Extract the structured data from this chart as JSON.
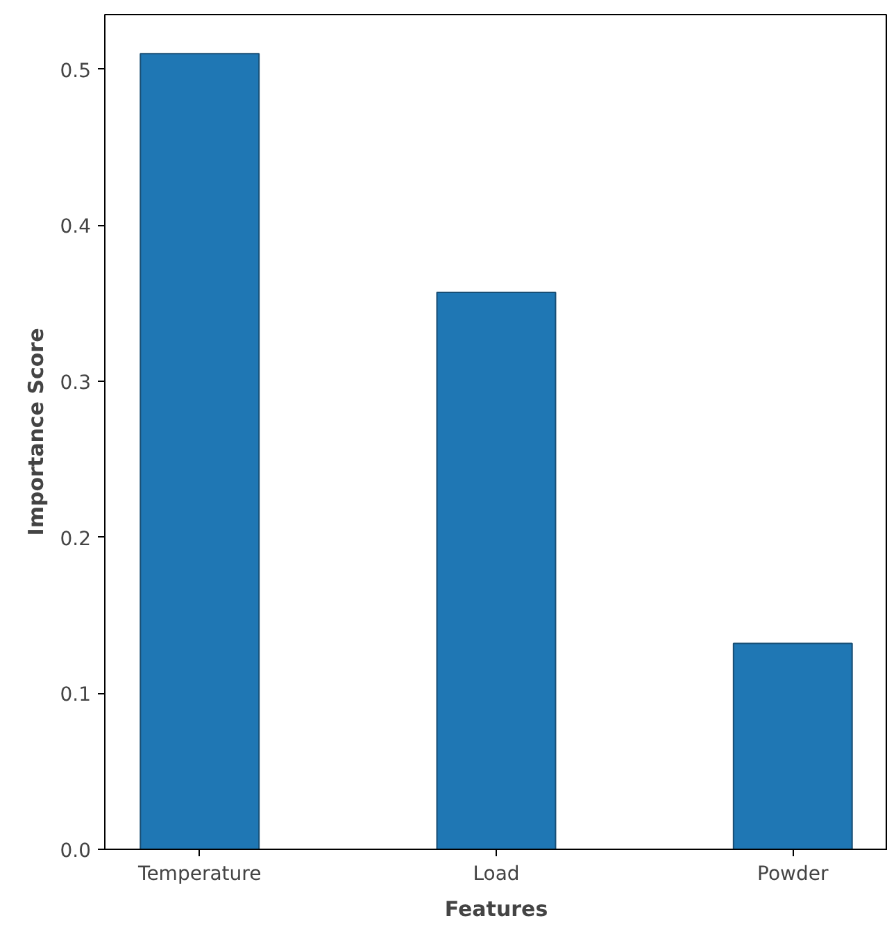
{
  "chart_data": {
    "type": "bar",
    "xlabel": "Features",
    "ylabel": "Importance Score",
    "categories": [
      "Temperature",
      "Load",
      "Powder"
    ],
    "values": [
      0.51,
      0.357,
      0.132
    ],
    "color": "#1f77b4",
    "ylim": [
      0,
      0.535
    ],
    "yticks": [
      {
        "value": 0,
        "label": "0.0"
      },
      0.1,
      0.2,
      0.3,
      0.4,
      0.5
    ],
    "grid": false
  }
}
